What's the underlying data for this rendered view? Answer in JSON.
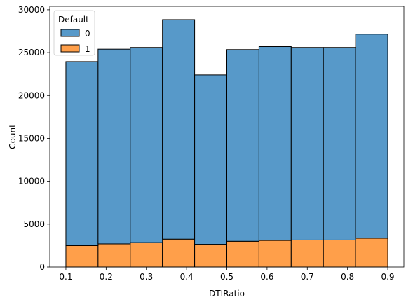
{
  "chart_data": {
    "type": "bar",
    "stacked": true,
    "bins": [
      {
        "x0": 0.1,
        "x1": 0.18
      },
      {
        "x0": 0.18,
        "x1": 0.26
      },
      {
        "x0": 0.26,
        "x1": 0.34
      },
      {
        "x0": 0.34,
        "x1": 0.42
      },
      {
        "x0": 0.42,
        "x1": 0.5
      },
      {
        "x0": 0.5,
        "x1": 0.58
      },
      {
        "x0": 0.58,
        "x1": 0.66
      },
      {
        "x0": 0.66,
        "x1": 0.74
      },
      {
        "x0": 0.74,
        "x1": 0.82
      },
      {
        "x0": 0.82,
        "x1": 0.9
      }
    ],
    "series": [
      {
        "name": "1",
        "color": "#ff9f4a",
        "values": [
          2500,
          2700,
          2850,
          3250,
          2650,
          3000,
          3100,
          3150,
          3150,
          3350
        ]
      },
      {
        "name": "0",
        "color": "#5799c9",
        "values": [
          21450,
          22700,
          22750,
          25600,
          19750,
          22350,
          22600,
          22450,
          22450,
          23800
        ]
      }
    ],
    "legend": {
      "title": "Default",
      "placement": "top-left",
      "order": [
        "0",
        "1"
      ]
    },
    "xlabel": "DTIRatio",
    "ylabel": "Count",
    "xlim": [
      0.06,
      0.94
    ],
    "ylim": [
      0,
      30400
    ],
    "xticks": [
      0.1,
      0.2,
      0.3,
      0.4,
      0.5,
      0.6,
      0.7,
      0.8,
      0.9
    ],
    "xtick_labels": [
      "0.1",
      "0.2",
      "0.3",
      "0.4",
      "0.5",
      "0.6",
      "0.7",
      "0.8",
      "0.9"
    ],
    "yticks": [
      0,
      5000,
      10000,
      15000,
      20000,
      25000,
      30000
    ],
    "ytick_labels": [
      "0",
      "5000",
      "10000",
      "15000",
      "20000",
      "25000",
      "30000"
    ],
    "grid": false
  }
}
